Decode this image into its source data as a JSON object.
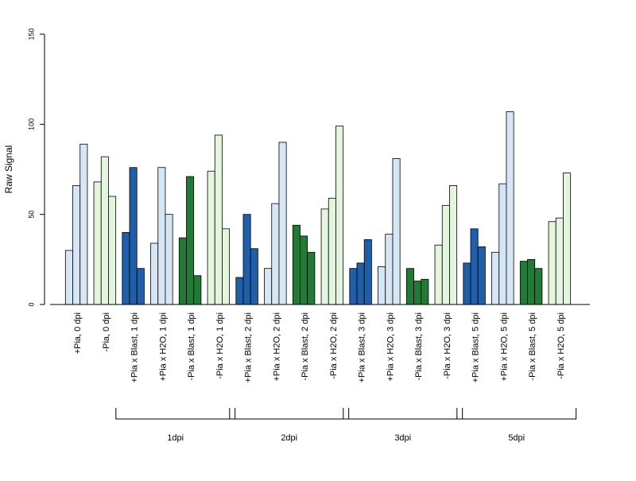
{
  "chart_data": {
    "type": "bar",
    "ylabel": "Raw Signal",
    "xlabel": "",
    "ylim": [
      0,
      150
    ],
    "yticks": [
      0,
      50,
      100,
      150
    ],
    "categories": [
      "+Pia, 0 dpi",
      "-Pia, 0 dpi",
      "+Pia x Blast, 1 dpi",
      "+Pia x H2O, 1 dpi",
      "-Pia x Blast, 1 dpi",
      "-Pia x H2O, 1 dpi",
      "+Pia x Blast, 2 dpi",
      "+Pia x H2O, 2 dpi",
      "-Pia x Blast, 2 dpi",
      "-Pia x H2O, 2 dpi",
      "+Pia x Blast, 3 dpi",
      "+Pia x H2O, 3 dpi",
      "-Pia x Blast, 3 dpi",
      "-Pia x H2O, 3 dpi",
      "+Pia x Blast, 5 dpi",
      "+Pia x H2O, 5 dpi",
      "-Pia x Blast, 5 dpi",
      "-Pia x H2O, 5 dpi"
    ],
    "values": [
      [
        30,
        66,
        89
      ],
      [
        68,
        82,
        60
      ],
      [
        40,
        76,
        20
      ],
      [
        34,
        76,
        50
      ],
      [
        37,
        71,
        16
      ],
      [
        74,
        94,
        42
      ],
      [
        15,
        50,
        31
      ],
      [
        20,
        56,
        90
      ],
      [
        44,
        38,
        29
      ],
      [
        53,
        59,
        99
      ],
      [
        20,
        23,
        36
      ],
      [
        21,
        39,
        81
      ],
      [
        20,
        13,
        14
      ],
      [
        33,
        55,
        66
      ],
      [
        23,
        42,
        32
      ],
      [
        29,
        67,
        107
      ],
      [
        24,
        25,
        20
      ],
      [
        46,
        48,
        73
      ]
    ],
    "bar_colors": [
      "#d6e6f5",
      "#e3f5dc",
      "#1f5faa",
      "#d6e6f5",
      "#217a35",
      "#e3f5dc",
      "#1f5faa",
      "#d6e6f5",
      "#217a35",
      "#e3f5dc",
      "#1f5faa",
      "#d6e6f5",
      "#217a35",
      "#e3f5dc",
      "#1f5faa",
      "#d6e6f5",
      "#217a35",
      "#e3f5dc"
    ],
    "groups": [
      {
        "label": "1dpi",
        "from": 2,
        "to": 5
      },
      {
        "label": "2dpi",
        "from": 6,
        "to": 9
      },
      {
        "label": "3dpi",
        "from": 10,
        "to": 13
      },
      {
        "label": "5dpi",
        "from": 14,
        "to": 17
      }
    ],
    "grid": false,
    "legend": "none"
  }
}
